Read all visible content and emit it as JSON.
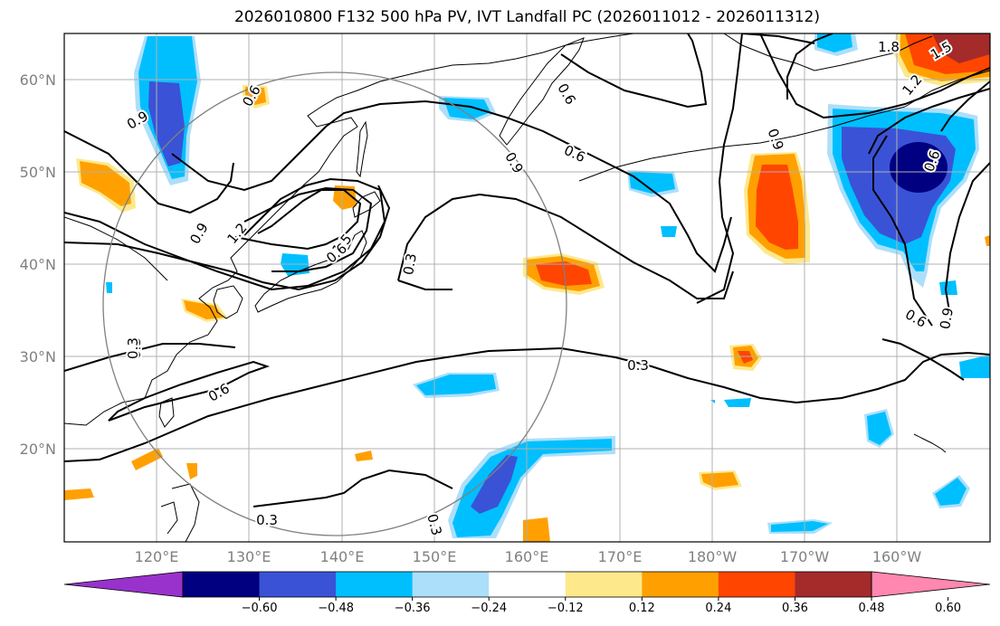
{
  "title": "2026010800 F132 500 hPa PV, IVT Landfall PC (2026011012 - 2026011312)",
  "axes": {
    "lat_ticks": [
      "20°N",
      "30°N",
      "40°N",
      "50°N",
      "60°N"
    ],
    "lon_ticks": [
      "120°E",
      "130°E",
      "140°E",
      "150°E",
      "160°E",
      "170°E",
      "180°W",
      "170°W",
      "160°W"
    ]
  },
  "contour_labels": {
    "values": [
      "0.3",
      "0.6",
      "0.9",
      "1.2",
      "1.5",
      "1.8"
    ],
    "placed": [
      "0.9",
      "0.6",
      "0.6",
      "0.3",
      "0.6",
      "0.9",
      "1.2",
      "1.5",
      "0.9",
      "0.3",
      "0.3",
      "0.6",
      "0.9",
      "0.6",
      "0.9",
      "0.3",
      "0.6",
      "0.3",
      "0.3",
      "1.8",
      "1.5",
      "1.2",
      "0.6"
    ]
  },
  "colorbar": {
    "ticks": [
      "−0.60",
      "−0.48",
      "−0.36",
      "−0.24",
      "−0.12",
      "0.12",
      "0.24",
      "0.36",
      "0.48",
      "0.60"
    ],
    "colors": [
      "#9932cc",
      "#000080",
      "#3a53d6",
      "#00bfff",
      "#acdffa",
      "#ffffff",
      "#fde98c",
      "#ffa000",
      "#ff4500",
      "#a52a2a",
      "#ff87b0"
    ]
  },
  "legend_colors": {
    "dark_blue": "#000080",
    "medium_blue": "#3a53d6",
    "sky_blue": "#00bfff",
    "light_blue": "#acdffa",
    "light_yellow": "#fde98c",
    "orange": "#ffa000",
    "red_orange": "#ff4500",
    "dark_red": "#a52a2a"
  }
}
